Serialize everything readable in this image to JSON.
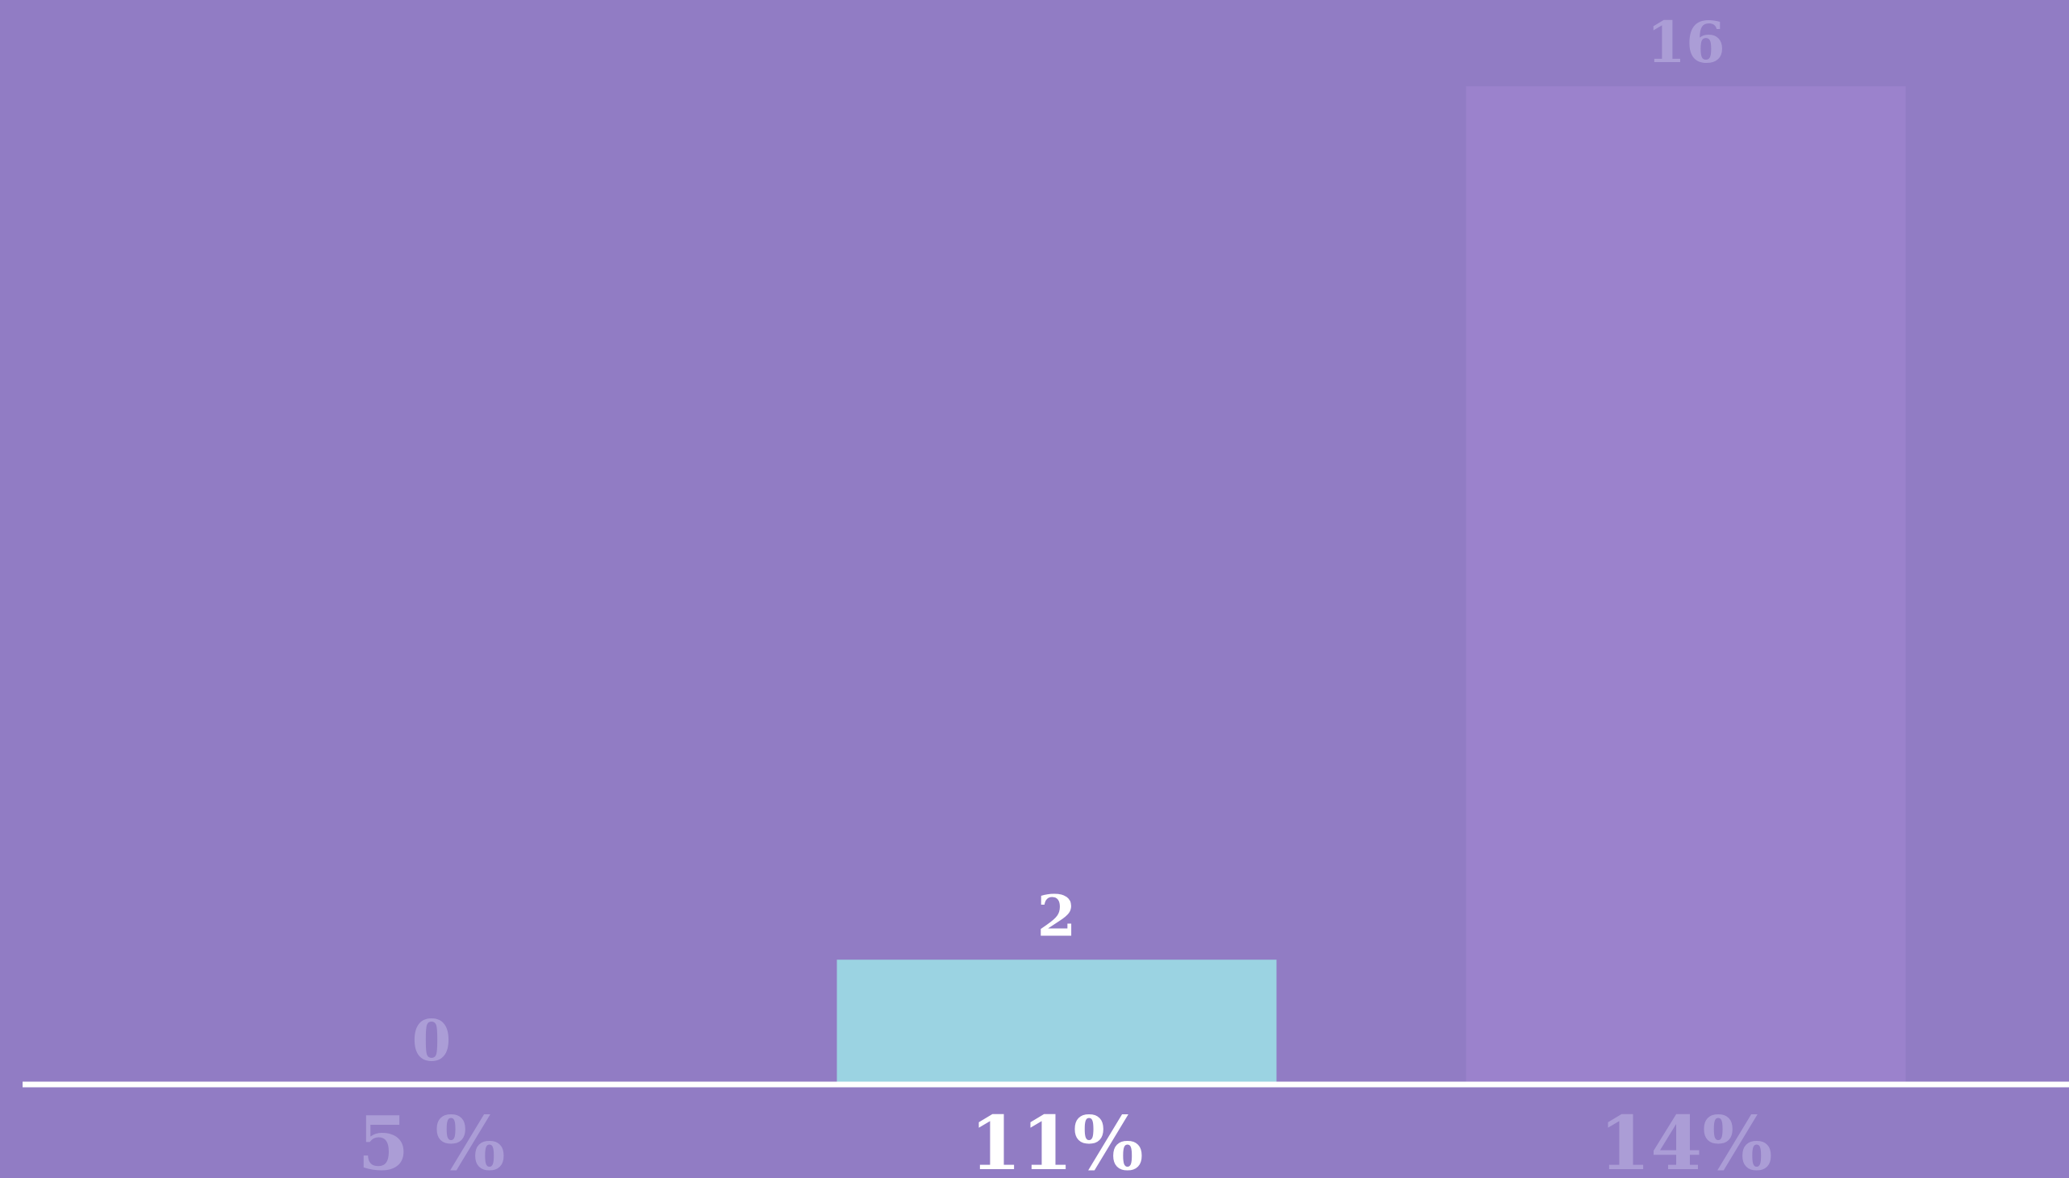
{
  "chart_data": {
    "type": "bar",
    "categories": [
      "5 %",
      "11%",
      "14%"
    ],
    "values": [
      0,
      2,
      16
    ],
    "value_labels": [
      "0",
      "2",
      "16"
    ],
    "highlighted_index": 1,
    "title": "",
    "xlabel": "",
    "ylabel": "",
    "ylim": [
      0,
      16
    ],
    "grid": false,
    "legend": "none"
  },
  "colors": {
    "background": "#917cc4",
    "highlight_bar": "#9bd3e2",
    "faded_bar": "#9b82cc",
    "baseline": "#ffffff",
    "highlight_text": "#ffffff",
    "faded_text": "#ab9dd6"
  }
}
